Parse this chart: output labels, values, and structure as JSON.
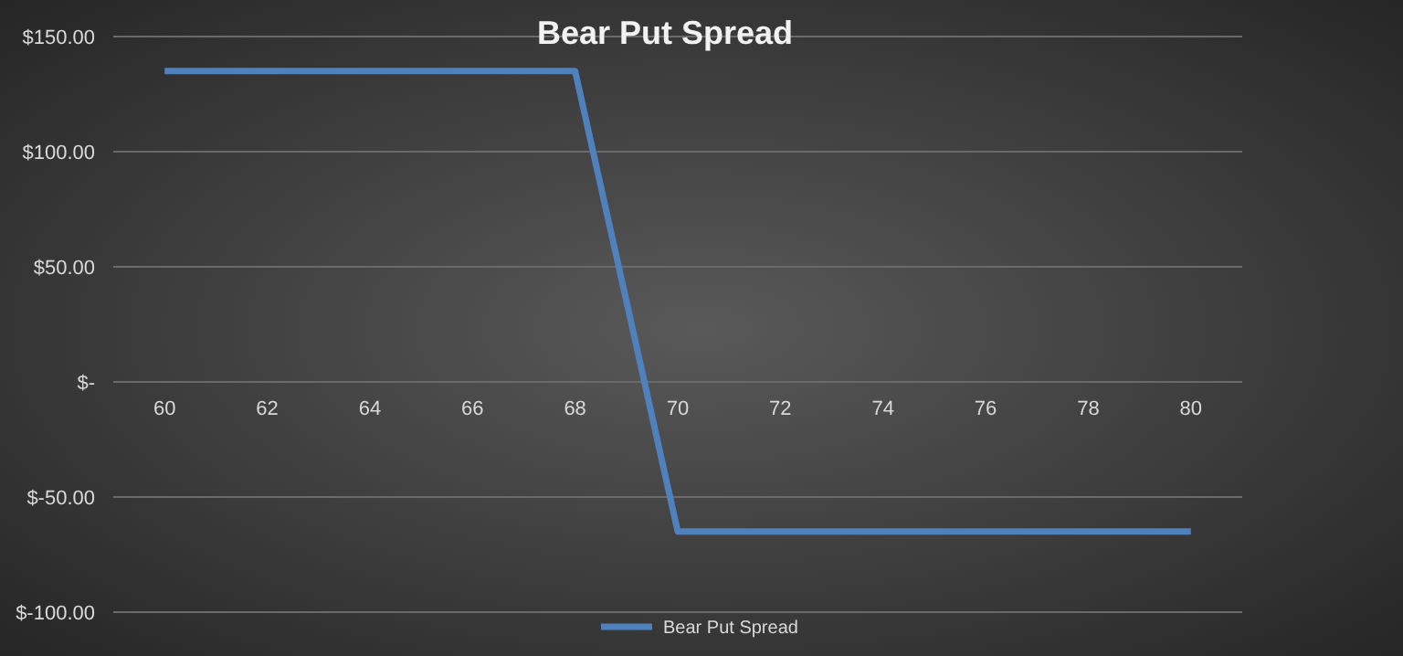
{
  "chart_data": {
    "type": "line",
    "title": "Bear Put Spread",
    "x": [
      60,
      68,
      70,
      80
    ],
    "series": [
      {
        "name": "Bear Put Spread",
        "color": "#4f81bd",
        "values": [
          135,
          135,
          -65,
          -65
        ]
      }
    ],
    "xlim": [
      59,
      81
    ],
    "xticks": [
      60,
      62,
      64,
      66,
      68,
      70,
      72,
      74,
      76,
      78,
      80
    ],
    "ylim": [
      -100,
      150
    ],
    "yticks": [
      {
        "value": -100,
        "label": "$-100.00"
      },
      {
        "value": -50,
        "label": "$-50.00"
      },
      {
        "value": 0,
        "label": "$-"
      },
      {
        "value": 50,
        "label": "$50.00"
      },
      {
        "value": 100,
        "label": "$100.00"
      },
      {
        "value": 150,
        "label": "$150.00"
      }
    ],
    "grid": "y",
    "legend": "bottom",
    "marker": "none",
    "line_style": "solid"
  }
}
